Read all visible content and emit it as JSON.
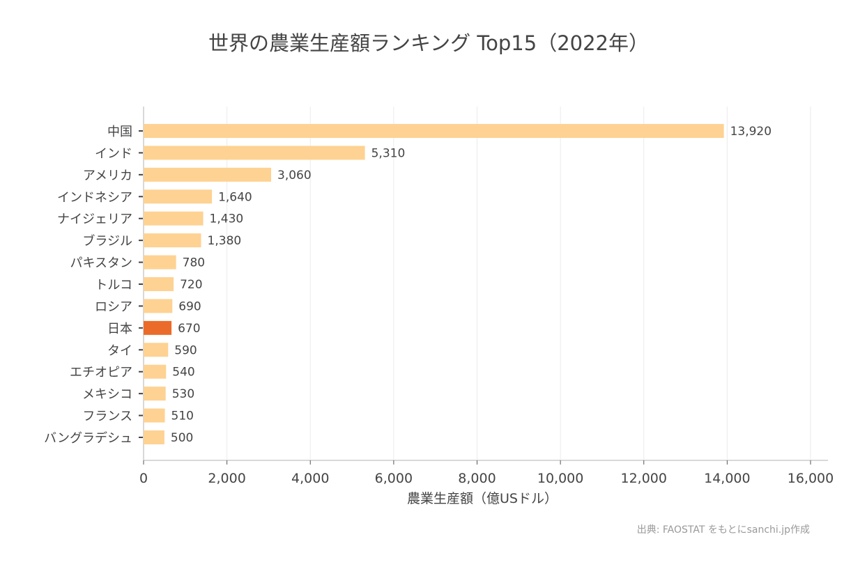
{
  "chart_data": {
    "type": "bar",
    "orientation": "horizontal",
    "title": "世界の農業生産額ランキング Top15（2022年）",
    "xlabel": "農業生産額（億USドル）",
    "ylabel": "",
    "xlim": [
      0,
      16000
    ],
    "xticks": [
      0,
      2000,
      4000,
      6000,
      8000,
      10000,
      12000,
      14000,
      16000
    ],
    "xtick_labels": [
      "0",
      "2,000",
      "4,000",
      "6,000",
      "8,000",
      "10,000",
      "12,000",
      "14,000",
      "16,000"
    ],
    "grid": "vertical",
    "categories": [
      "中国",
      "インド",
      "アメリカ",
      "インドネシア",
      "ナイジェリア",
      "ブラジル",
      "パキスタン",
      "トルコ",
      "ロシア",
      "日本",
      "タイ",
      "エチオピア",
      "メキシコ",
      "フランス",
      "バングラデシュ"
    ],
    "values": [
      13920,
      5310,
      3060,
      1640,
      1430,
      1380,
      780,
      720,
      690,
      670,
      590,
      540,
      530,
      510,
      500
    ],
    "data_labels": [
      "13,920",
      "5,310",
      "3,060",
      "1,640",
      "1,430",
      "1,380",
      "780",
      "720",
      "690",
      "670",
      "590",
      "540",
      "530",
      "510",
      "500"
    ],
    "highlight": "日本",
    "colors": {
      "bar": "#fed292",
      "highlight": "#eb6b2a",
      "grid": "#ebebeb",
      "text": "#444444"
    },
    "source": "出典: FAOSTAT をもとにsanchi.jp作成"
  }
}
